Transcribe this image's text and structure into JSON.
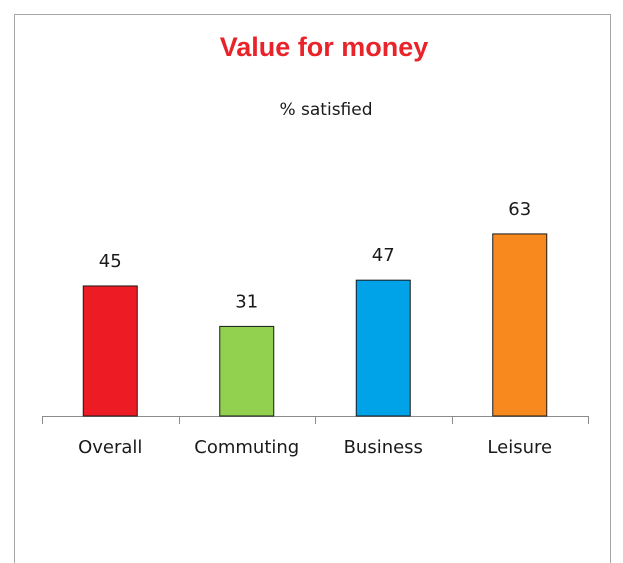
{
  "chart_data": {
    "type": "bar",
    "title": "Value for money",
    "subtitle": "% satisfied",
    "categories": [
      "Overall",
      "Commuting",
      "Business",
      "Leisure"
    ],
    "values": [
      45,
      31,
      47,
      63
    ],
    "colors": [
      "#ed1c24",
      "#92d050",
      "#00a2e8",
      "#f7891f"
    ]
  }
}
